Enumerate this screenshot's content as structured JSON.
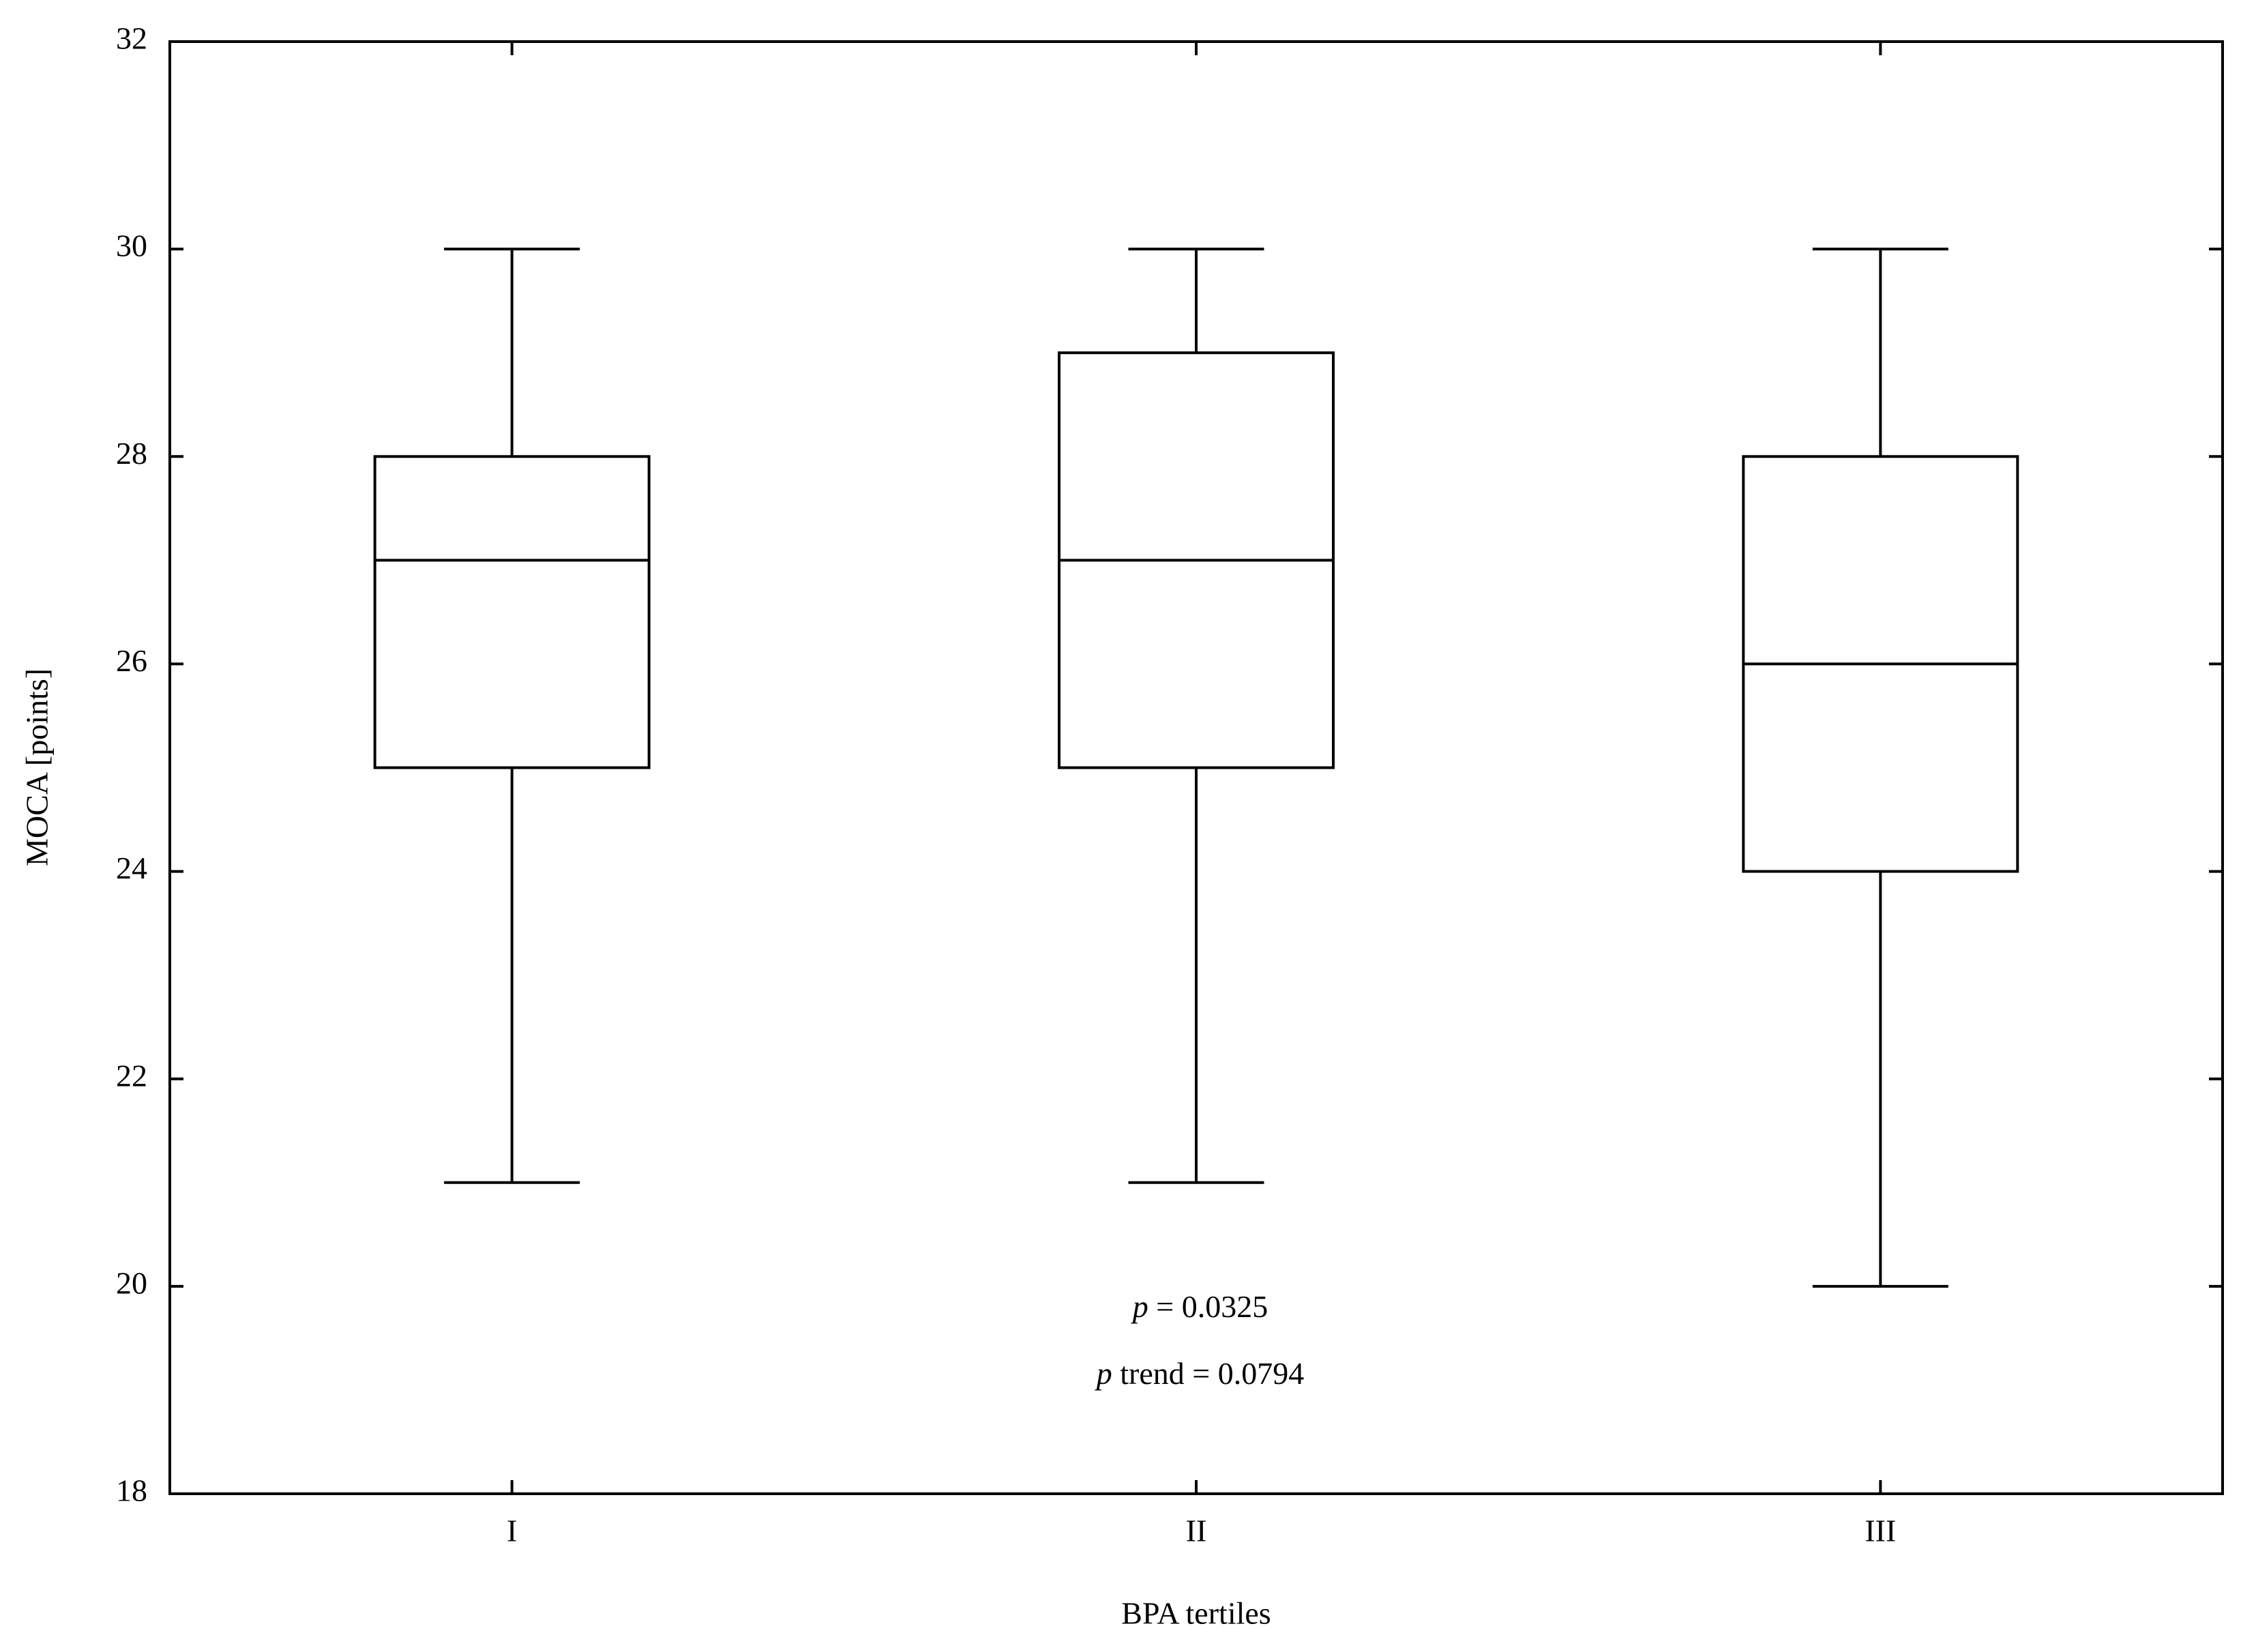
{
  "chart_data": {
    "type": "box",
    "x_label": "BPA tertiles",
    "y_label": "MOCA [points]",
    "categories": [
      "I",
      "II",
      "III"
    ],
    "series": [
      {
        "name": null,
        "color": "#ffffff",
        "min": [
          21,
          21,
          20
        ],
        "q1": [
          25,
          25,
          24
        ],
        "median": [
          27,
          27,
          26
        ],
        "q3": [
          28,
          29,
          28
        ],
        "max": [
          30,
          30,
          30
        ]
      }
    ],
    "annotations": [
      "p = 0.0325",
      "p trend = 0.0794"
    ],
    "ylim": [
      18,
      32
    ],
    "yticks": [
      18,
      20,
      22,
      24,
      26,
      28,
      30,
      32
    ],
    "grid": false
  }
}
